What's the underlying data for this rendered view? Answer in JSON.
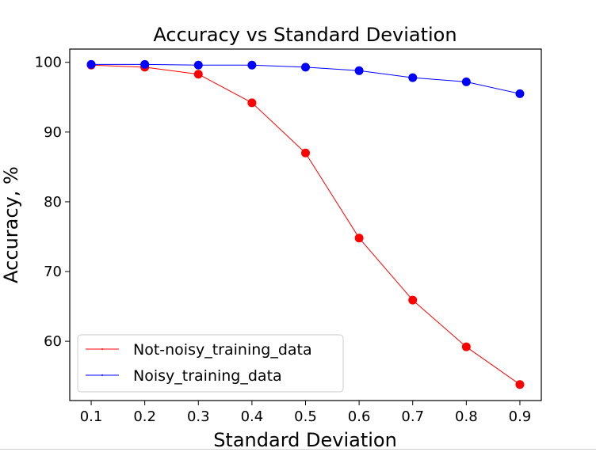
{
  "chart_data": {
    "type": "line",
    "title": "Accuracy vs Standard Deviation",
    "xlabel": "Standard Deviation",
    "ylabel": "Accuracy, %",
    "x": [
      0.1,
      0.2,
      0.3,
      0.4,
      0.5,
      0.6,
      0.7,
      0.8,
      0.9
    ],
    "x_tick_labels": [
      "0.1",
      "0.2",
      "0.3",
      "0.4",
      "0.5",
      "0.6",
      "0.7",
      "0.8",
      "0.9"
    ],
    "y_ticks": [
      60,
      70,
      80,
      90,
      100
    ],
    "y_tick_labels": [
      "60",
      "70",
      "80",
      "90",
      "100"
    ],
    "xlim": [
      0.06,
      0.94
    ],
    "ylim": [
      51.5,
      101.9
    ],
    "grid": false,
    "legend_position": "lower-left",
    "series": [
      {
        "name": "Not-noisy_training_data",
        "color": "#ff0000",
        "values": [
          99.6,
          99.3,
          98.3,
          94.2,
          87.0,
          74.8,
          65.9,
          59.2,
          53.8
        ]
      },
      {
        "name": "Noisy_training_data",
        "color": "#0000ff",
        "values": [
          99.7,
          99.7,
          99.6,
          99.6,
          99.3,
          98.8,
          97.8,
          97.2,
          95.5
        ]
      }
    ]
  }
}
